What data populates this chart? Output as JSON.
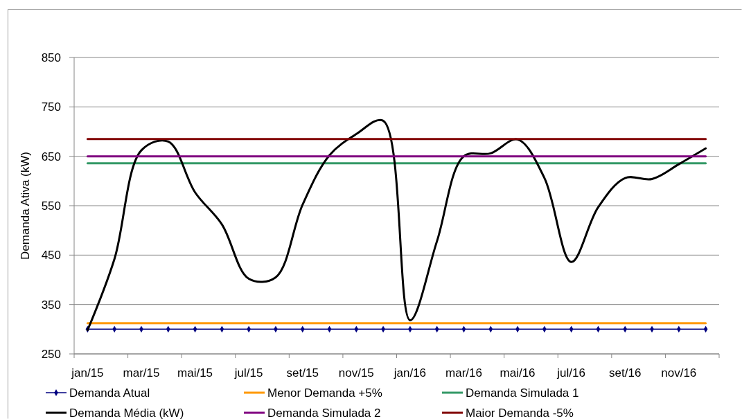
{
  "chart_data": {
    "type": "line",
    "ylabel": "Demanda Ativa (kW)",
    "categories": [
      "jan/15",
      null,
      "mar/15",
      null,
      "mai/15",
      null,
      "jul/15",
      null,
      "set/15",
      null,
      "nov/15",
      null,
      "jan/16",
      null,
      "mar/16",
      null,
      "mai/16",
      null,
      "jul/16",
      null,
      "set/16",
      null,
      "nov/16",
      null
    ],
    "ylim": [
      250,
      850
    ],
    "yticks": [
      250,
      350,
      450,
      550,
      650,
      750,
      850
    ],
    "grid": "y",
    "legend": "bottom",
    "series": [
      {
        "name": "Demanda Atual",
        "color": "#000080",
        "marker": "diamond",
        "values": [
          300,
          300,
          300,
          300,
          300,
          300,
          300,
          300,
          300,
          300,
          300,
          300,
          300,
          300,
          300,
          300,
          300,
          300,
          300,
          300,
          300,
          300,
          300,
          300
        ]
      },
      {
        "name": "Menor Demanda +5%",
        "color": "#ff9900",
        "values": [
          312,
          312,
          312,
          312,
          312,
          312,
          312,
          312,
          312,
          312,
          312,
          312,
          312,
          312,
          312,
          312,
          312,
          312,
          312,
          312,
          312,
          312,
          312,
          312
        ]
      },
      {
        "name": "Demanda Simulada 1",
        "color": "#339966",
        "values": [
          636,
          636,
          636,
          636,
          636,
          636,
          636,
          636,
          636,
          636,
          636,
          636,
          636,
          636,
          636,
          636,
          636,
          636,
          636,
          636,
          636,
          636,
          636,
          636
        ]
      },
      {
        "name": "Demanda Média (kW)",
        "color": "#000000",
        "values": [
          298,
          442,
          662,
          680,
          577,
          512,
          402,
          405,
          552,
          652,
          695,
          722,
          318,
          478,
          650,
          656,
          684,
          606,
          436,
          547,
          606,
          604,
          634,
          666
        ]
      },
      {
        "name": "Demanda Simulada 2",
        "color": "#800080",
        "values": [
          650,
          650,
          650,
          650,
          650,
          650,
          650,
          650,
          650,
          650,
          650,
          650,
          650,
          650,
          650,
          650,
          650,
          650,
          650,
          650,
          650,
          650,
          650,
          650
        ]
      },
      {
        "name": "Maior Demanda -5%",
        "color": "#800000",
        "values": [
          685,
          685,
          685,
          685,
          685,
          685,
          685,
          685,
          685,
          685,
          685,
          685,
          685,
          685,
          685,
          685,
          685,
          685,
          685,
          685,
          685,
          685,
          685,
          685
        ]
      }
    ]
  }
}
